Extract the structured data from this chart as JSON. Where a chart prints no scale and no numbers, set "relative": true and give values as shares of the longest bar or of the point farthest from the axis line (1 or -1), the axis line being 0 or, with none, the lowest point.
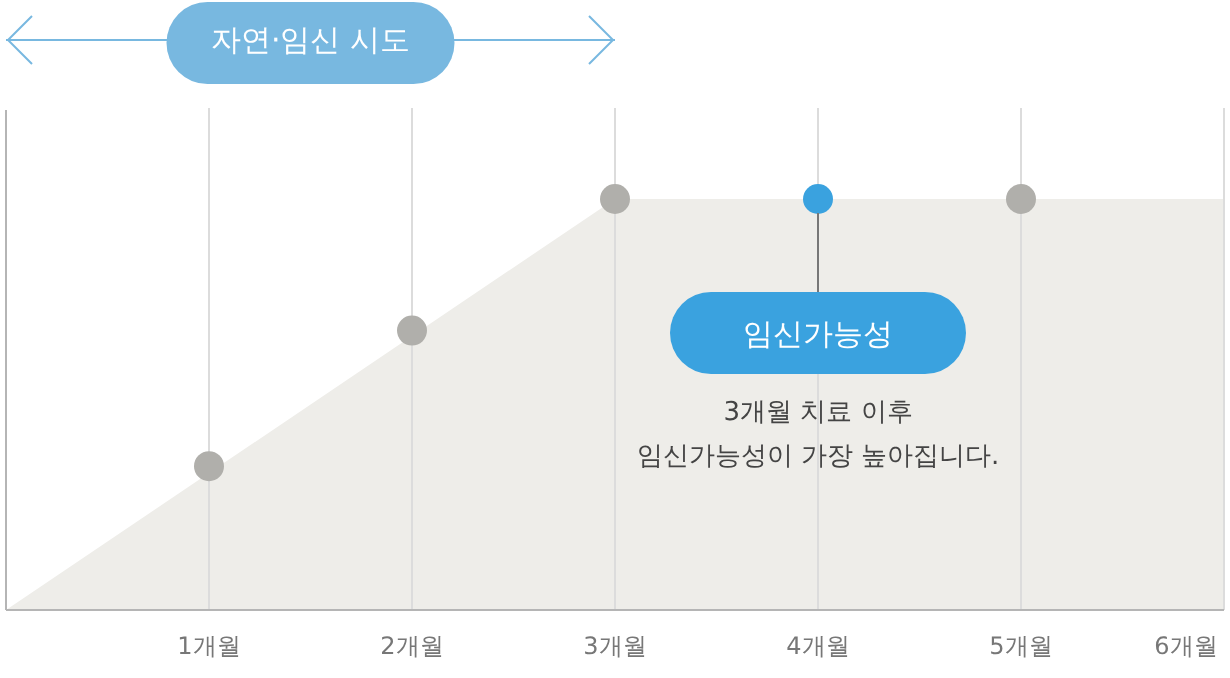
{
  "chart_data": {
    "type": "scatter",
    "relative": true,
    "x": [
      1,
      2,
      3,
      4,
      5
    ],
    "xlim": [
      0,
      6
    ],
    "xticks": [
      {
        "value": 1,
        "label": "1개월"
      },
      {
        "value": 2,
        "label": "2개월"
      },
      {
        "value": 3,
        "label": "3개월"
      },
      {
        "value": 4,
        "label": "4개월"
      },
      {
        "value": 5,
        "label": "5개월"
      },
      {
        "value": 6,
        "label": "6개월"
      }
    ],
    "grid": "x",
    "series": [
      {
        "type": "area",
        "color": "#eeede9",
        "x": [
          0,
          3,
          6
        ],
        "values": [
          0,
          1,
          1
        ]
      },
      {
        "marker": "circle",
        "colors": [
          "#b0afab",
          "#b0afab",
          "#b0afab",
          "#3aa2df",
          "#b0afab"
        ],
        "values": [
          0.35,
          0.68,
          1,
          1,
          1
        ]
      }
    ],
    "annotations": [
      "자연·임신 시도",
      {
        "text": "임신가능성",
        "x": 4,
        "y": 1
      },
      "3개월 치료 이후\n임신가능성이 가장 높아집니다."
    ]
  }
}
